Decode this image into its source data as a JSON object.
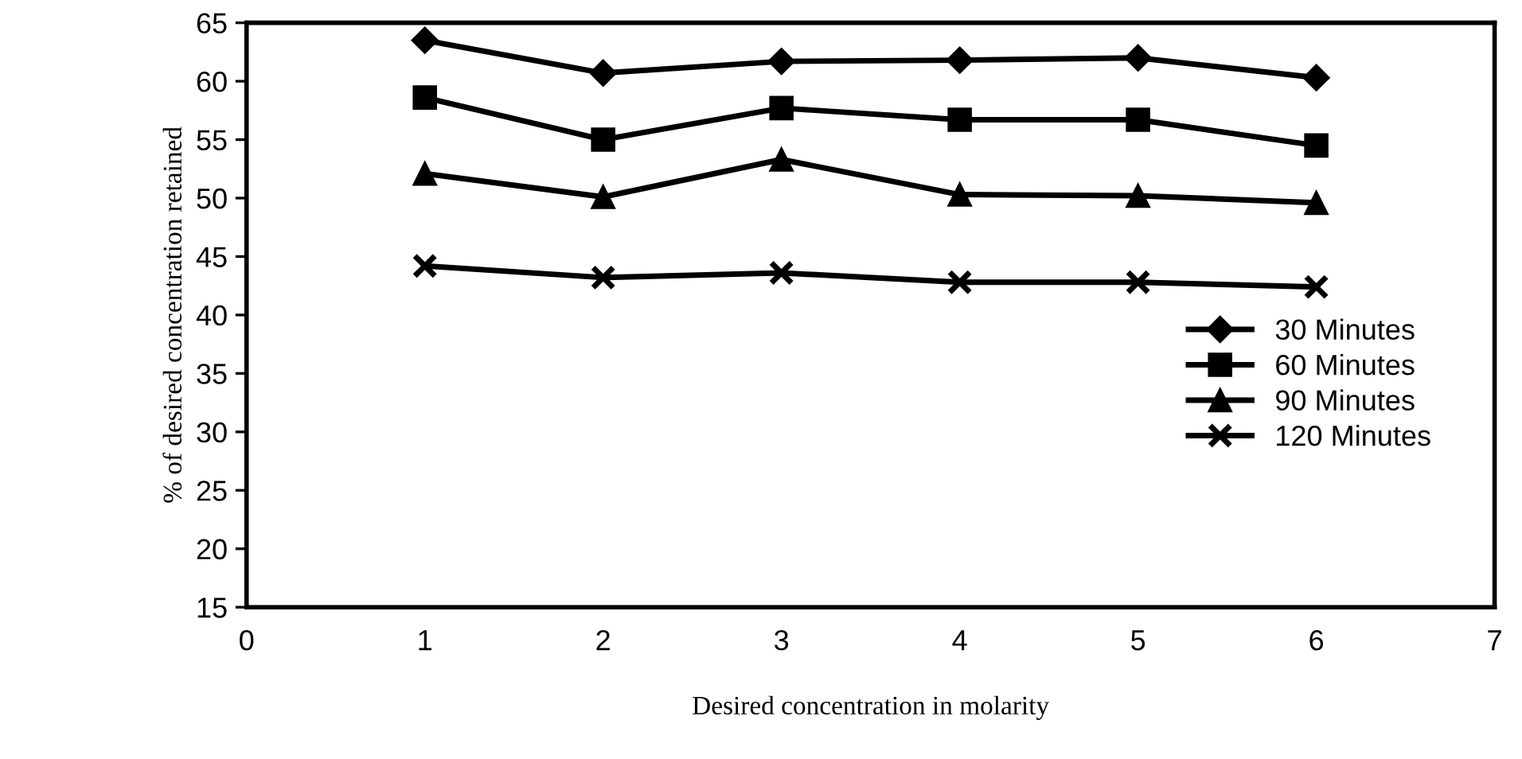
{
  "chart_data": {
    "type": "line",
    "xlabel": "Desired concentration in molarity",
    "ylabel": "% of desired concentration retained",
    "x": [
      1,
      2,
      3,
      4,
      5,
      6
    ],
    "xlim": [
      0,
      7
    ],
    "xticks": [
      0,
      1,
      2,
      3,
      4,
      5,
      6,
      7
    ],
    "ylim": [
      15,
      65
    ],
    "yticks": [
      15,
      20,
      25,
      30,
      35,
      40,
      45,
      50,
      55,
      60,
      65
    ],
    "grid": false,
    "legend": "right",
    "line_style": "solid",
    "series": [
      {
        "name": "30 Minutes",
        "color": "#000000",
        "marker": "diamond",
        "values": [
          63.5,
          60.7,
          61.7,
          61.8,
          62.0,
          60.3
        ]
      },
      {
        "name": "60 Minutes",
        "color": "#000000",
        "marker": "square",
        "values": [
          58.6,
          55.0,
          57.7,
          56.7,
          56.7,
          54.5
        ]
      },
      {
        "name": "90 Minutes",
        "color": "#000000",
        "marker": "triangle",
        "values": [
          52.1,
          50.1,
          53.3,
          50.3,
          50.2,
          49.6
        ]
      },
      {
        "name": "120 Minutes",
        "color": "#000000",
        "marker": "cross",
        "values": [
          44.2,
          43.2,
          43.6,
          42.8,
          42.8,
          42.4
        ]
      }
    ]
  }
}
